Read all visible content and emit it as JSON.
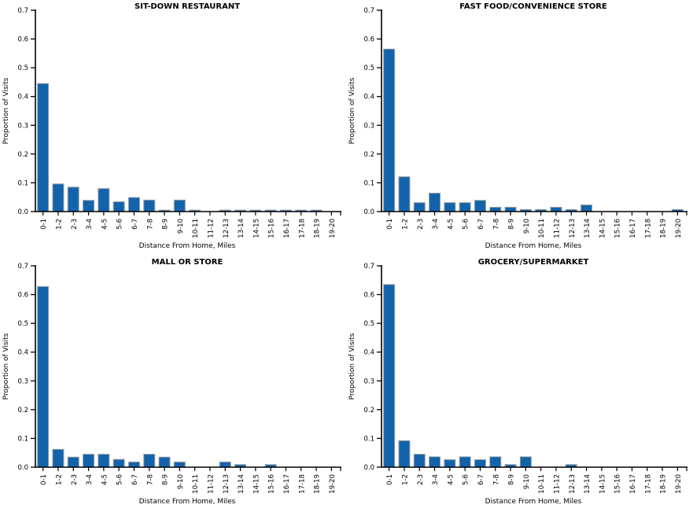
{
  "page": {
    "background": "#ffffff"
  },
  "style": {
    "bar_color": "#1263AC",
    "bar_border": "#9E9E9E",
    "axis_color": "#000000",
    "text_color": "#000000"
  },
  "axis": {
    "xlabel": "Distance From Home, Miles",
    "ylabel": "Proportion of Visits",
    "ylim": [
      0,
      0.7
    ],
    "yticks": [
      "0.0",
      "0.1",
      "0.2",
      "0.3",
      "0.4",
      "0.5",
      "0.6",
      "0.7"
    ]
  },
  "chart_data": [
    {
      "type": "bar",
      "position": "top-left",
      "title": "SIT-DOWN RESTAURANT",
      "xlabel": "Distance From Home, Miles",
      "ylabel": "Proportion of Visits",
      "ylim": [
        0,
        0.7
      ],
      "grid": false,
      "categories": [
        "0-1",
        "1-2",
        "2-3",
        "3-4",
        "4-5",
        "5-6",
        "6-7",
        "7-8",
        "8-9",
        "9-10",
        "10-11",
        "11-12",
        "12-13",
        "13-14",
        "14-15",
        "15-16",
        "16-17",
        "17-18",
        "18-19",
        "19-20"
      ],
      "values": [
        0.445,
        0.096,
        0.085,
        0.039,
        0.08,
        0.034,
        0.049,
        0.04,
        0.005,
        0.04,
        0.005,
        0,
        0.005,
        0.005,
        0.005,
        0.005,
        0.005,
        0.005,
        0.005,
        0
      ]
    },
    {
      "type": "bar",
      "position": "top-right",
      "title": "FAST FOOD/CONVENIENCE STORE",
      "xlabel": "Distance From Home, Miles",
      "ylabel": "Proportion of Visits",
      "ylim": [
        0,
        0.7
      ],
      "grid": false,
      "categories": [
        "0-1",
        "1-2",
        "2-3",
        "3-4",
        "4-5",
        "5-6",
        "6-7",
        "7-8",
        "8-9",
        "9-10",
        "10-11",
        "11-12",
        "12-13",
        "13-14",
        "14-15",
        "15-16",
        "16-17",
        "17-18",
        "18-19",
        "19-20"
      ],
      "values": [
        0.565,
        0.121,
        0.031,
        0.064,
        0.031,
        0.031,
        0.039,
        0.015,
        0.015,
        0.007,
        0.007,
        0.015,
        0.007,
        0.023,
        0,
        0,
        0,
        0,
        0,
        0.007
      ]
    },
    {
      "type": "bar",
      "position": "bottom-left",
      "title": "MALL OR STORE",
      "xlabel": "Distance From Home, Miles",
      "ylabel": "Proportion of Visits",
      "ylim": [
        0,
        0.7
      ],
      "grid": false,
      "categories": [
        "0-1",
        "1-2",
        "2-3",
        "3-4",
        "4-5",
        "5-6",
        "6-7",
        "7-8",
        "8-9",
        "9-10",
        "10-11",
        "11-12",
        "12-13",
        "13-14",
        "14-15",
        "15-16",
        "16-17",
        "17-18",
        "18-19",
        "19-20"
      ],
      "values": [
        0.628,
        0.062,
        0.035,
        0.045,
        0.045,
        0.027,
        0.018,
        0.045,
        0.035,
        0.018,
        0,
        0,
        0.018,
        0.009,
        0,
        0.009,
        0,
        0,
        0,
        0
      ]
    },
    {
      "type": "bar",
      "position": "bottom-right",
      "title": "GROCERY/SUPERMARKET",
      "xlabel": "Distance From Home, Miles",
      "ylabel": "Proportion of Visits",
      "ylim": [
        0,
        0.7
      ],
      "grid": false,
      "categories": [
        "0-1",
        "1-2",
        "2-3",
        "3-4",
        "4-5",
        "5-6",
        "6-7",
        "7-8",
        "8-9",
        "9-10",
        "10-11",
        "11-12",
        "12-13",
        "13-14",
        "14-15",
        "15-16",
        "16-17",
        "17-18",
        "18-19",
        "19-20"
      ],
      "values": [
        0.635,
        0.092,
        0.045,
        0.036,
        0.026,
        0.036,
        0.026,
        0.036,
        0.009,
        0.036,
        0,
        0,
        0.009,
        0,
        0,
        0,
        0,
        0,
        0,
        0
      ]
    }
  ]
}
